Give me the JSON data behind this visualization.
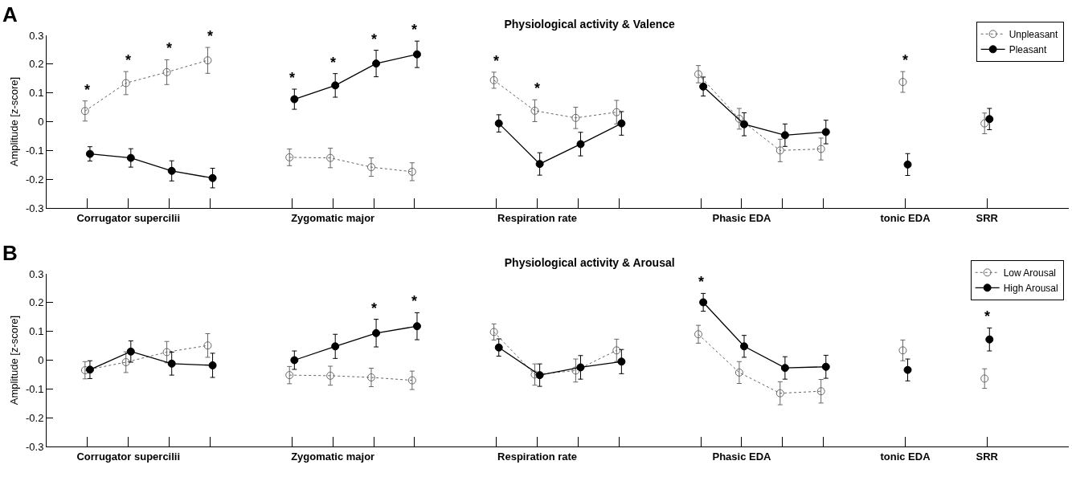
{
  "chart_data": [
    {
      "type": "line",
      "title": "Physiological activity & Valence",
      "ylabel": "Amplitude [z-score]",
      "legend": "top right",
      "grid": false,
      "ylim": [
        -0.3,
        0.3
      ],
      "yticks": [
        -0.3,
        -0.2,
        -0.1,
        0,
        0.1,
        0.2,
        0.3
      ],
      "categories": [
        null,
        "Corrugator supercilii",
        null,
        null,
        null,
        null,
        "Zygomatic major",
        null,
        null,
        null,
        null,
        "Respiration rate",
        null,
        null,
        null,
        null,
        "Phasic EDA",
        null,
        null,
        null,
        "tonic EDA",
        null,
        "SRR"
      ],
      "series": [
        {
          "name": "Unpleasant",
          "color": "#666666",
          "marker": "circle-open",
          "line_style": "dotted",
          "values": [
            0.037,
            0.134,
            0.172,
            0.213,
            null,
            -0.124,
            -0.126,
            -0.158,
            -0.174,
            null,
            0.144,
            0.038,
            0.013,
            0.033,
            null,
            0.165,
            0.01,
            -0.1,
            -0.095,
            null,
            0.138,
            null,
            -0.006
          ],
          "errors": [
            0.035,
            0.04,
            0.043,
            0.045,
            null,
            0.029,
            0.034,
            0.032,
            0.031,
            null,
            0.028,
            0.038,
            0.037,
            0.041,
            null,
            0.03,
            0.036,
            0.039,
            0.038,
            null,
            0.036,
            null,
            0.036
          ],
          "value_labels": [
            "*",
            "*",
            "*",
            "*",
            null,
            null,
            null,
            null,
            null,
            null,
            "*",
            "*",
            null,
            null,
            null,
            null,
            null,
            null,
            null,
            null,
            "*",
            null,
            null
          ]
        },
        {
          "name": "Pleasant",
          "color": "#000000",
          "marker": "circle",
          "line_style": "solid",
          "values": [
            -0.112,
            -0.126,
            -0.171,
            -0.196,
            null,
            0.078,
            0.126,
            0.202,
            0.234,
            null,
            -0.006,
            -0.147,
            -0.078,
            -0.006,
            null,
            0.122,
            -0.009,
            -0.047,
            -0.036,
            null,
            -0.149,
            null,
            0.009
          ],
          "errors": [
            0.025,
            0.032,
            0.035,
            0.034,
            null,
            0.035,
            0.041,
            0.046,
            0.046,
            null,
            0.03,
            0.039,
            0.041,
            0.041,
            null,
            0.033,
            0.04,
            0.039,
            0.041,
            null,
            0.038,
            null,
            0.037
          ],
          "value_labels": [
            null,
            null,
            null,
            null,
            null,
            "*",
            "*",
            "*",
            "*",
            null,
            null,
            null,
            null,
            null,
            null,
            null,
            null,
            null,
            null,
            null,
            null,
            null,
            null
          ]
        }
      ],
      "annotations": [
        "A"
      ]
    },
    {
      "type": "line",
      "title": "Physiological activity & Arousal",
      "ylabel": "Amplitude [z-score]",
      "legend": "top right",
      "grid": false,
      "ylim": [
        -0.3,
        0.3
      ],
      "yticks": [
        -0.3,
        -0.2,
        -0.1,
        0,
        0.1,
        0.2,
        0.3
      ],
      "categories": [
        null,
        "Corrugator supercilii",
        null,
        null,
        null,
        null,
        "Zygomatic major",
        null,
        null,
        null,
        null,
        "Respiration rate",
        null,
        null,
        null,
        null,
        "Phasic EDA",
        null,
        null,
        null,
        "tonic EDA",
        null,
        "SRR"
      ],
      "series": [
        {
          "name": "Low Arousal",
          "color": "#666666",
          "marker": "circle-open",
          "line_style": "dotted",
          "values": [
            -0.035,
            -0.007,
            0.028,
            0.051,
            null,
            -0.052,
            -0.054,
            -0.06,
            -0.07,
            null,
            0.098,
            -0.05,
            -0.036,
            0.034,
            null,
            0.09,
            -0.043,
            -0.115,
            -0.108,
            null,
            0.034,
            null,
            -0.064
          ],
          "errors": [
            0.03,
            0.036,
            0.037,
            0.041,
            null,
            0.03,
            0.033,
            0.032,
            0.032,
            null,
            0.028,
            0.037,
            0.04,
            0.039,
            null,
            0.031,
            0.038,
            0.04,
            0.041,
            null,
            0.036,
            null,
            0.034
          ]
        },
        {
          "name": "High Arousal",
          "color": "#000000",
          "marker": "circle",
          "line_style": "solid",
          "values": [
            -0.033,
            0.03,
            -0.012,
            -0.018,
            null,
            0,
            0.048,
            0.094,
            0.118,
            null,
            0.044,
            -0.052,
            -0.025,
            -0.005,
            null,
            0.201,
            0.048,
            -0.027,
            -0.023,
            null,
            -0.034,
            null,
            0.072
          ],
          "errors": [
            0.031,
            0.037,
            0.04,
            0.042,
            null,
            0.032,
            0.042,
            0.048,
            0.047,
            null,
            0.03,
            0.039,
            0.041,
            0.042,
            null,
            0.031,
            0.038,
            0.039,
            0.04,
            null,
            0.038,
            null,
            0.04
          ],
          "value_labels": [
            null,
            null,
            null,
            null,
            null,
            null,
            null,
            "*",
            "*",
            null,
            null,
            null,
            null,
            null,
            null,
            "*",
            null,
            null,
            null,
            null,
            null,
            null,
            "*"
          ]
        }
      ],
      "annotations": [
        "B"
      ]
    }
  ]
}
